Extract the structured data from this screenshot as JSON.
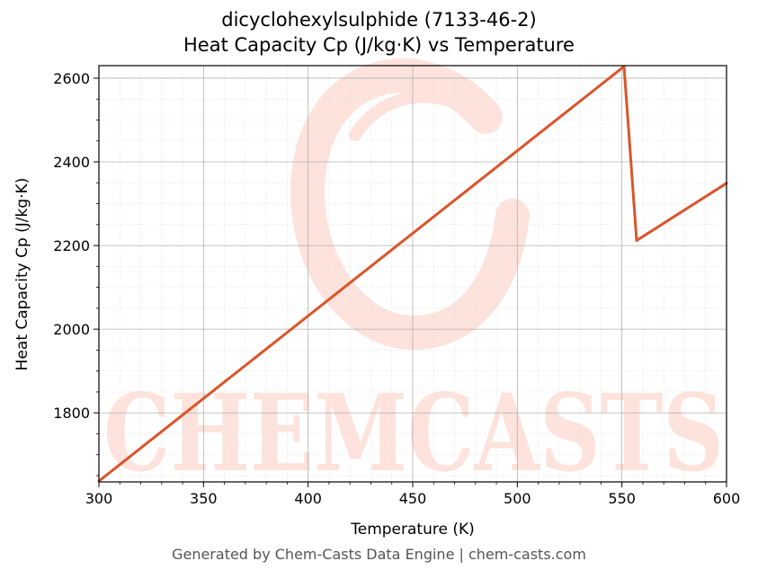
{
  "chart_data": {
    "type": "line",
    "title": "dicyclohexylsulphide (7133-46-2)",
    "subtitle": "Heat Capacity Cp (J/kg·K) vs Temperature",
    "xlabel": "Temperature (K)",
    "ylabel": "Heat Capacity Cp (J/kg·K)",
    "xlim": [
      300,
      600
    ],
    "ylim": [
      1635,
      2630
    ],
    "xticks": [
      300,
      350,
      400,
      450,
      500,
      550,
      600
    ],
    "yticks": [
      1800,
      2000,
      2200,
      2400,
      2600
    ],
    "grid": true,
    "series": [
      {
        "color": "#d9552a",
        "points": [
          [
            300,
            1637
          ],
          [
            551,
            2628
          ],
          [
            557,
            2212
          ],
          [
            600,
            2349
          ]
        ]
      }
    ]
  },
  "watermark": "CHEMCASTS",
  "footer": "Generated by Chem-Casts Data Engine | chem-casts.com",
  "colors": {
    "line": "#d9552a",
    "watermark": "#fde3dc"
  }
}
